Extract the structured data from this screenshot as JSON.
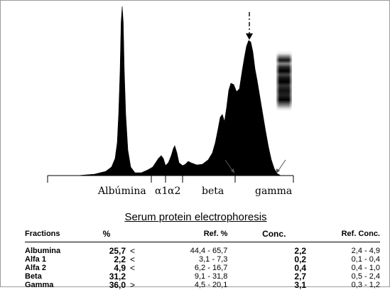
{
  "chart_data": [
    {
      "type": "area",
      "title": "",
      "x_labels": [
        "Albúmina",
        "α1",
        "α2",
        "beta",
        "gamma"
      ],
      "fill_color": "#000000",
      "inset_band_image": true
    },
    {
      "type": "table",
      "title": "Serum protein electrophoresis",
      "columns": [
        "Fractions",
        "%",
        "",
        "Ref. %",
        "Conc.",
        "Ref. Conc."
      ],
      "rows": [
        {
          "fraction": "Albumina",
          "percent": "25,7",
          "flag": "<",
          "ref_percent": "44,4 - 65,7",
          "conc": "2,2",
          "ref_conc": "2,4 -   4,9"
        },
        {
          "fraction": "Alfa 1",
          "percent": "2,2",
          "flag": "<",
          "ref_percent": "3,1 -  7,3",
          "conc": "0,2",
          "ref_conc": "0,1 -  0,4"
        },
        {
          "fraction": "Alfa 2",
          "percent": "4,9",
          "flag": "<",
          "ref_percent": "6,2 - 16,7",
          "conc": "0,4",
          "ref_conc": "0,4 -  1,0"
        },
        {
          "fraction": "Beta",
          "percent": "31,2",
          "flag": "",
          "ref_percent": "9,1 - 31,8",
          "conc": "2,7",
          "ref_conc": "0,5 -  2,4"
        },
        {
          "fraction": "Gamma",
          "percent": "36,0",
          "flag": ">",
          "ref_percent": "4,5 - 20,1",
          "conc": "3,1",
          "ref_conc": "0,3 -  1,2"
        }
      ]
    }
  ]
}
